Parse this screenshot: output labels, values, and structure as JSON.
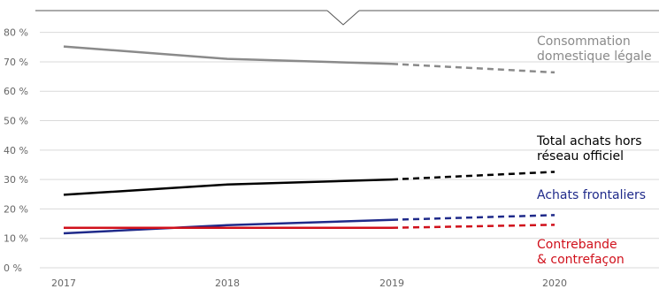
{
  "chart_data": {
    "type": "line",
    "categories": [
      "2017",
      "2018",
      "2019",
      "2020"
    ],
    "y_ticks": [
      "0 %",
      "10 %",
      "20 %",
      "30 %",
      "40 %",
      "50 %",
      "60 %",
      "70 %",
      "80 %"
    ],
    "ylim": [
      0,
      85
    ],
    "grid": true,
    "series": [
      {
        "name": "Consommation domestique légale",
        "label_lines": [
          "Consommation",
          "domestique légale"
        ],
        "color": "#8a8a8a",
        "values": [
          75.2,
          71.0,
          69.3,
          66.4
        ],
        "projected_from_index": 2
      },
      {
        "name": "Total achats hors réseau officiel",
        "label_lines": [
          "Total achats hors",
          "réseau officiel"
        ],
        "color": "#000000",
        "values": [
          24.8,
          28.3,
          30.0,
          32.6
        ],
        "projected_from_index": 2
      },
      {
        "name": "Achats frontaliers",
        "label_lines": [
          "Achats frontaliers"
        ],
        "color": "#1f2a8a",
        "values": [
          11.7,
          14.5,
          16.3,
          17.9
        ],
        "projected_from_index": 2
      },
      {
        "name": "Contrebande & contrefaçon",
        "label_lines": [
          "Contrebande",
          "& contrefaçon"
        ],
        "color": "#d0101b",
        "values": [
          13.6,
          13.6,
          13.6,
          14.6
        ],
        "projected_from_index": 2
      }
    ]
  }
}
